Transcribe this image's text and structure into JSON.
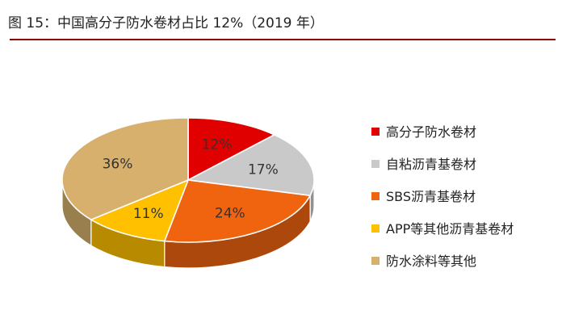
{
  "header": {
    "title": "图 15：中国高分子防水卷材占比 12%（2019 年）"
  },
  "chart_data": {
    "type": "pie",
    "title": "中国高分子防水卷材占比 12%（2019 年）",
    "series": [
      {
        "name": "高分子防水卷材",
        "value": 12,
        "label": "12%",
        "color": "#e00000"
      },
      {
        "name": "自粘沥青基卷材",
        "value": 17,
        "label": "17%",
        "color": "#c9c9c9"
      },
      {
        "name": "SBS沥青基卷材",
        "value": 24,
        "label": "24%",
        "color": "#f06410"
      },
      {
        "name": "APP等其他沥青基卷材",
        "value": 11,
        "label": "11%",
        "color": "#ffc000"
      },
      {
        "name": "防水涂料等其他",
        "value": 36,
        "label": "36%",
        "color": "#d6b06c"
      }
    ],
    "legend_position": "right",
    "style": "3d-pie"
  }
}
